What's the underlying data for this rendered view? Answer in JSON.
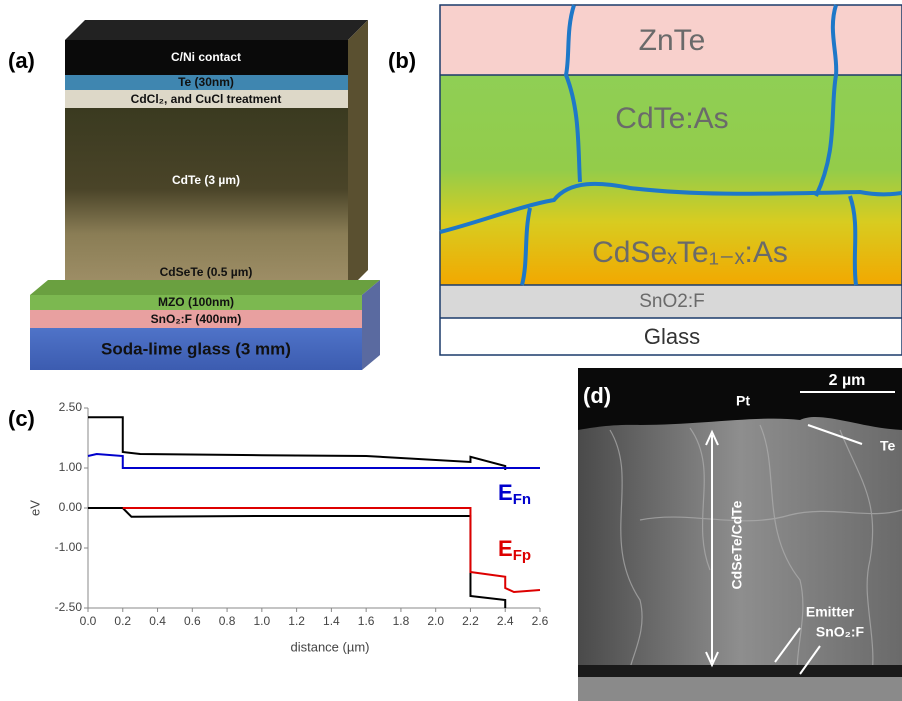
{
  "panels": {
    "a": {
      "label": "(a)",
      "layers": [
        "C/Ni contact",
        "Te (30nm)",
        "CdCl₂, and CuCl treatment",
        "CdTe (3 µm)",
        "CdSeTe (0.5 µm)",
        "MZO (100nm)",
        "SnO₂:F (400nm)",
        "Soda-lime glass (3 mm)"
      ]
    },
    "b": {
      "label": "(b)",
      "layers": [
        "ZnTe",
        "CdTe:As",
        "CdSeₓTe₁₋ₓ:As",
        "SnO2:F",
        "Glass"
      ]
    },
    "c": {
      "label": "(c)"
    },
    "d": {
      "label": "(d)",
      "annotations": [
        "Pt",
        "2 µm",
        "Te",
        "CdSeTe/CdTe",
        "Emitter",
        "SnO₂:F"
      ]
    }
  },
  "chart_data": {
    "type": "line",
    "xlabel": "distance (µm)",
    "ylabel": "eV",
    "xlim": [
      0,
      2.6
    ],
    "ylim": [
      -2.5,
      2.5
    ],
    "xticks": [
      {
        "value": 0,
        "label": "0.0"
      },
      0.2,
      0.4,
      0.6,
      0.8,
      {
        "value": 1,
        "label": "1.0"
      },
      1.2,
      1.4,
      1.6,
      1.8,
      {
        "value": 2,
        "label": "2.0"
      },
      2.2,
      2.4,
      2.6
    ],
    "yticks": [
      {
        "value": 2.5,
        "label": "2.50"
      },
      {
        "value": 1,
        "label": "1.00"
      },
      {
        "value": 0,
        "label": "0.00"
      },
      {
        "value": -1,
        "label": "-1.00"
      },
      {
        "value": -2.5,
        "label": "-2.50"
      }
    ],
    "series": [
      {
        "color": "#000000",
        "x": [
          0,
          0.2,
          0.2,
          0.3,
          1.0,
          1.6,
          2.2,
          2.2,
          2.4,
          2.4
        ],
        "values": [
          2.27,
          2.27,
          1.4,
          1.35,
          1.32,
          1.3,
          1.15,
          1.28,
          1.05,
          0.95
        ]
      },
      {
        "color": "#0000cc",
        "label_main": "E",
        "label_sub": "Fn",
        "x": [
          0,
          0.05,
          0.2,
          0.2,
          2.6
        ],
        "values": [
          1.3,
          1.35,
          1.3,
          1.0,
          1.0
        ]
      },
      {
        "color": "#000000",
        "x": [
          0,
          0.2,
          0.25,
          1.0,
          2.2,
          2.2,
          2.4,
          2.4
        ],
        "values": [
          0,
          0,
          -0.22,
          -0.2,
          -0.2,
          -2.2,
          -2.3,
          -2.5
        ]
      },
      {
        "color": "#dd0000",
        "label_main": "E",
        "label_sub": "Fp",
        "x": [
          0.2,
          2.2,
          2.2,
          2.4,
          2.4,
          2.45,
          2.6
        ],
        "values": [
          0,
          0,
          -1.6,
          -1.72,
          -2.0,
          -2.1,
          -2.05
        ]
      }
    ]
  }
}
